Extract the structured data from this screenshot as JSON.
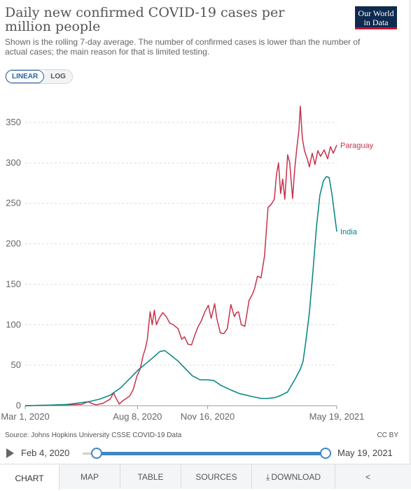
{
  "header": {
    "title": "Daily new confirmed COVID-19 cases per million people",
    "subtitle": "Shown is the rolling 7-day average. The number of confirmed cases is lower than the number of actual cases; the main reason for that is limited testing.",
    "logo_line1": "Our World",
    "logo_line2": "in Data",
    "brand_color": "#0e2a4f"
  },
  "scale_toggle": {
    "linear": "LINEAR",
    "log": "LOG",
    "active": "LINEAR"
  },
  "chart_data": {
    "type": "line",
    "title": "Daily new confirmed COVID-19 cases per million people",
    "ylim": [
      0,
      350
    ],
    "yticks": [
      "0",
      "50",
      "100",
      "150",
      "200",
      "250",
      "300",
      "350"
    ],
    "xticks": [
      {
        "date": "2020-03-01",
        "label": "Mar 1, 2020"
      },
      {
        "date": "2020-08-08",
        "label": "Aug 8, 2020"
      },
      {
        "date": "2020-11-16",
        "label": "Nov 16, 2020"
      },
      {
        "date": "2021-05-19",
        "label": "May 19, 2021"
      }
    ],
    "x_range": [
      "2020-03-01",
      "2021-05-19"
    ],
    "grid": true,
    "series": [
      {
        "name": "Paraguay",
        "color": "#c8324b",
        "points": [
          [
            "2020-03-01",
            0
          ],
          [
            "2020-03-31",
            0.5
          ],
          [
            "2020-04-30",
            1
          ],
          [
            "2020-05-20",
            1.5
          ],
          [
            "2020-05-30",
            5
          ],
          [
            "2020-06-03",
            3
          ],
          [
            "2020-06-10",
            1
          ],
          [
            "2020-06-20",
            3
          ],
          [
            "2020-06-30",
            8
          ],
          [
            "2020-07-05",
            16
          ],
          [
            "2020-07-08",
            10
          ],
          [
            "2020-07-13",
            2
          ],
          [
            "2020-07-18",
            6
          ],
          [
            "2020-07-23",
            9
          ],
          [
            "2020-07-28",
            12
          ],
          [
            "2020-08-02",
            20
          ],
          [
            "2020-08-07",
            36
          ],
          [
            "2020-08-12",
            46
          ],
          [
            "2020-08-16",
            62
          ],
          [
            "2020-08-19",
            70
          ],
          [
            "2020-08-22",
            82
          ],
          [
            "2020-08-26",
            116
          ],
          [
            "2020-08-29",
            100
          ],
          [
            "2020-09-01",
            118
          ],
          [
            "2020-09-04",
            100
          ],
          [
            "2020-09-08",
            108
          ],
          [
            "2020-09-13",
            115
          ],
          [
            "2020-09-18",
            110
          ],
          [
            "2020-09-23",
            102
          ],
          [
            "2020-09-28",
            100
          ],
          [
            "2020-10-05",
            95
          ],
          [
            "2020-10-10",
            82
          ],
          [
            "2020-10-14",
            85
          ],
          [
            "2020-10-19",
            76
          ],
          [
            "2020-10-24",
            75
          ],
          [
            "2020-10-29",
            88
          ],
          [
            "2020-11-02",
            97
          ],
          [
            "2020-11-07",
            105
          ],
          [
            "2020-11-12",
            116
          ],
          [
            "2020-11-17",
            124
          ],
          [
            "2020-11-21",
            108
          ],
          [
            "2020-11-26",
            126
          ],
          [
            "2020-11-29",
            108
          ],
          [
            "2020-12-04",
            90
          ],
          [
            "2020-12-09",
            89
          ],
          [
            "2020-12-14",
            95
          ],
          [
            "2020-12-19",
            125
          ],
          [
            "2020-12-24",
            110
          ],
          [
            "2020-12-27",
            115
          ],
          [
            "2020-12-30",
            116
          ],
          [
            "2021-01-03",
            100
          ],
          [
            "2021-01-08",
            98
          ],
          [
            "2021-01-14",
            130
          ],
          [
            "2021-01-19",
            138
          ],
          [
            "2021-01-22",
            145
          ],
          [
            "2021-01-26",
            160
          ],
          [
            "2021-01-31",
            158
          ],
          [
            "2021-02-05",
            185
          ],
          [
            "2021-02-10",
            245
          ],
          [
            "2021-02-14",
            248
          ],
          [
            "2021-02-19",
            255
          ],
          [
            "2021-02-22",
            285
          ],
          [
            "2021-02-25",
            300
          ],
          [
            "2021-02-28",
            262
          ],
          [
            "2021-03-03",
            280
          ],
          [
            "2021-03-06",
            255
          ],
          [
            "2021-03-10",
            310
          ],
          [
            "2021-03-13",
            300
          ],
          [
            "2021-03-17",
            256
          ],
          [
            "2021-03-20",
            292
          ],
          [
            "2021-03-23",
            318
          ],
          [
            "2021-03-26",
            340
          ],
          [
            "2021-03-28",
            370
          ],
          [
            "2021-03-31",
            330
          ],
          [
            "2021-04-03",
            315
          ],
          [
            "2021-04-07",
            305
          ],
          [
            "2021-04-10",
            295
          ],
          [
            "2021-04-14",
            312
          ],
          [
            "2021-04-18",
            298
          ],
          [
            "2021-04-22",
            315
          ],
          [
            "2021-04-26",
            308
          ],
          [
            "2021-05-01",
            316
          ],
          [
            "2021-05-06",
            305
          ],
          [
            "2021-05-10",
            320
          ],
          [
            "2021-05-14",
            312
          ],
          [
            "2021-05-19",
            322
          ]
        ]
      },
      {
        "name": "India",
        "color": "#00847e",
        "points": [
          [
            "2020-03-01",
            0
          ],
          [
            "2020-04-01",
            0.5
          ],
          [
            "2020-04-30",
            1.5
          ],
          [
            "2020-05-31",
            5
          ],
          [
            "2020-06-15",
            8
          ],
          [
            "2020-06-30",
            13
          ],
          [
            "2020-07-15",
            22
          ],
          [
            "2020-07-31",
            36
          ],
          [
            "2020-08-10",
            45
          ],
          [
            "2020-08-20",
            52
          ],
          [
            "2020-08-31",
            60
          ],
          [
            "2020-09-09",
            67
          ],
          [
            "2020-09-16",
            68
          ],
          [
            "2020-09-25",
            62
          ],
          [
            "2020-10-05",
            55
          ],
          [
            "2020-10-15",
            46
          ],
          [
            "2020-10-25",
            37
          ],
          [
            "2020-11-05",
            32
          ],
          [
            "2020-11-16",
            32
          ],
          [
            "2020-11-25",
            31
          ],
          [
            "2020-12-05",
            25
          ],
          [
            "2020-12-20",
            19
          ],
          [
            "2020-12-31",
            15
          ],
          [
            "2021-01-10",
            13
          ],
          [
            "2021-01-20",
            11
          ],
          [
            "2021-01-31",
            9
          ],
          [
            "2021-02-10",
            9
          ],
          [
            "2021-02-20",
            10
          ],
          [
            "2021-03-01",
            13
          ],
          [
            "2021-03-10",
            17
          ],
          [
            "2021-03-20",
            32
          ],
          [
            "2021-03-28",
            45
          ],
          [
            "2021-04-01",
            55
          ],
          [
            "2021-04-05",
            80
          ],
          [
            "2021-04-10",
            115
          ],
          [
            "2021-04-15",
            165
          ],
          [
            "2021-04-20",
            220
          ],
          [
            "2021-04-25",
            260
          ],
          [
            "2021-04-30",
            278
          ],
          [
            "2021-05-04",
            283
          ],
          [
            "2021-05-08",
            282
          ],
          [
            "2021-05-12",
            262
          ],
          [
            "2021-05-16",
            235
          ],
          [
            "2021-05-19",
            215
          ]
        ]
      }
    ]
  },
  "source": "Source: Johns Hopkins University CSSE COVID-19 Data",
  "license": "CC BY",
  "timeline": {
    "start_label": "Feb 4, 2020",
    "end_label": "May 19, 2021",
    "accent": "#3f86c6"
  },
  "tabs": {
    "chart": "CHART",
    "map": "MAP",
    "table": "TABLE",
    "sources": "SOURCES",
    "download": "DOWNLOAD"
  }
}
